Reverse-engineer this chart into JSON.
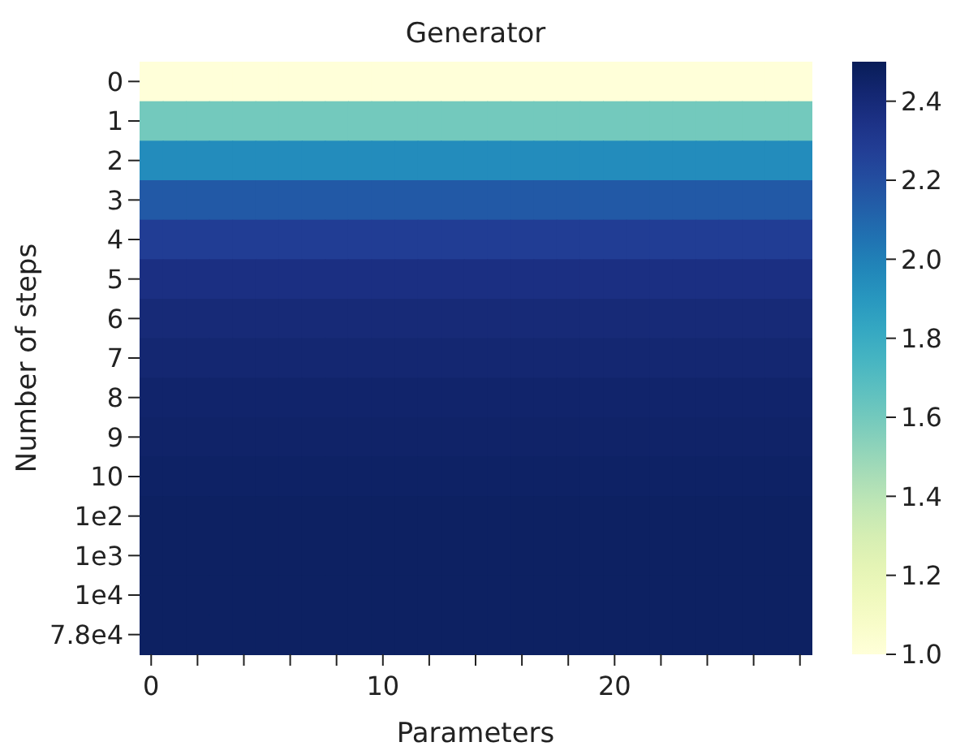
{
  "chart_data": {
    "type": "heatmap",
    "title": "Generator",
    "xlabel": "Parameters",
    "ylabel": "Number of steps",
    "categories": [
      "0",
      null,
      null,
      null,
      null,
      null,
      null,
      null,
      null,
      null,
      "10",
      null,
      null,
      null,
      null,
      null,
      null,
      null,
      null,
      null,
      "20",
      null,
      null,
      null,
      null,
      null,
      null,
      null,
      null
    ],
    "y_categories": [
      "0",
      "1",
      "2",
      "3",
      "4",
      "5",
      "6",
      "7",
      "8",
      "9",
      "10",
      "1e2",
      "1e3",
      "1e4",
      "7.8e4"
    ],
    "cells": [
      [
        1.0,
        1.0,
        1.0,
        1.0,
        1.0,
        1.0,
        1.0,
        1.0,
        1.0,
        1.0,
        1.0,
        1.0,
        1.0,
        1.0,
        1.0,
        1.0,
        1.0,
        1.0,
        1.0,
        1.0,
        1.0,
        1.0,
        1.0,
        1.0,
        1.0,
        1.0,
        1.0,
        1.0,
        1.0
      ],
      [
        1.6,
        1.6,
        1.6,
        1.6,
        1.6,
        1.6,
        1.6,
        1.6,
        1.6,
        1.6,
        1.6,
        1.6,
        1.6,
        1.6,
        1.6,
        1.6,
        1.6,
        1.6,
        1.6,
        1.6,
        1.6,
        1.6,
        1.6,
        1.6,
        1.6,
        1.6,
        1.6,
        1.6,
        1.6
      ],
      [
        1.95,
        1.95,
        1.95,
        1.95,
        1.95,
        1.95,
        1.95,
        1.95,
        1.95,
        1.95,
        1.95,
        1.95,
        1.95,
        1.95,
        1.95,
        1.95,
        1.95,
        1.95,
        1.95,
        1.95,
        1.95,
        1.95,
        1.95,
        1.95,
        1.95,
        1.95,
        1.95,
        1.95,
        1.95
      ],
      [
        2.15,
        2.15,
        2.15,
        2.15,
        2.15,
        2.15,
        2.15,
        2.15,
        2.15,
        2.15,
        2.15,
        2.15,
        2.15,
        2.15,
        2.15,
        2.15,
        2.15,
        2.15,
        2.15,
        2.15,
        2.15,
        2.15,
        2.15,
        2.15,
        2.15,
        2.15,
        2.15,
        2.15,
        2.15
      ],
      [
        2.28,
        2.28,
        2.28,
        2.28,
        2.28,
        2.28,
        2.28,
        2.28,
        2.28,
        2.28,
        2.28,
        2.28,
        2.28,
        2.28,
        2.28,
        2.28,
        2.28,
        2.28,
        2.28,
        2.28,
        2.28,
        2.28,
        2.28,
        2.28,
        2.28,
        2.28,
        2.28,
        2.28,
        2.28
      ],
      [
        2.36,
        2.36,
        2.36,
        2.36,
        2.36,
        2.36,
        2.36,
        2.36,
        2.36,
        2.36,
        2.36,
        2.36,
        2.36,
        2.36,
        2.36,
        2.36,
        2.36,
        2.36,
        2.36,
        2.36,
        2.36,
        2.36,
        2.36,
        2.36,
        2.36,
        2.36,
        2.36,
        2.36,
        2.36
      ],
      [
        2.4,
        2.4,
        2.4,
        2.4,
        2.4,
        2.4,
        2.4,
        2.4,
        2.4,
        2.4,
        2.4,
        2.4,
        2.4,
        2.4,
        2.4,
        2.4,
        2.4,
        2.4,
        2.4,
        2.4,
        2.4,
        2.4,
        2.4,
        2.4,
        2.4,
        2.4,
        2.4,
        2.4,
        2.4
      ],
      [
        2.42,
        2.42,
        2.42,
        2.42,
        2.42,
        2.42,
        2.42,
        2.42,
        2.42,
        2.42,
        2.42,
        2.42,
        2.42,
        2.42,
        2.42,
        2.42,
        2.42,
        2.42,
        2.42,
        2.42,
        2.42,
        2.42,
        2.42,
        2.42,
        2.42,
        2.42,
        2.42,
        2.42,
        2.42
      ],
      [
        2.44,
        2.44,
        2.44,
        2.44,
        2.44,
        2.44,
        2.44,
        2.44,
        2.44,
        2.44,
        2.44,
        2.44,
        2.44,
        2.44,
        2.44,
        2.44,
        2.44,
        2.44,
        2.44,
        2.44,
        2.44,
        2.44,
        2.44,
        2.44,
        2.44,
        2.44,
        2.44,
        2.44,
        2.44
      ],
      [
        2.45,
        2.45,
        2.45,
        2.45,
        2.45,
        2.45,
        2.45,
        2.45,
        2.45,
        2.45,
        2.45,
        2.45,
        2.45,
        2.45,
        2.45,
        2.45,
        2.45,
        2.45,
        2.45,
        2.45,
        2.45,
        2.45,
        2.45,
        2.45,
        2.45,
        2.45,
        2.45,
        2.45,
        2.45
      ],
      [
        2.46,
        2.46,
        2.46,
        2.46,
        2.46,
        2.46,
        2.46,
        2.46,
        2.46,
        2.46,
        2.46,
        2.46,
        2.46,
        2.46,
        2.46,
        2.46,
        2.46,
        2.46,
        2.46,
        2.46,
        2.46,
        2.46,
        2.46,
        2.46,
        2.46,
        2.46,
        2.46,
        2.46,
        2.46
      ],
      [
        2.47,
        2.47,
        2.47,
        2.47,
        2.47,
        2.47,
        2.47,
        2.47,
        2.47,
        2.47,
        2.47,
        2.47,
        2.47,
        2.47,
        2.47,
        2.47,
        2.47,
        2.47,
        2.47,
        2.47,
        2.47,
        2.47,
        2.47,
        2.47,
        2.47,
        2.47,
        2.47,
        2.47,
        2.47
      ],
      [
        2.47,
        2.47,
        2.47,
        2.47,
        2.47,
        2.47,
        2.47,
        2.47,
        2.47,
        2.47,
        2.47,
        2.47,
        2.47,
        2.47,
        2.47,
        2.47,
        2.47,
        2.47,
        2.47,
        2.47,
        2.47,
        2.47,
        2.47,
        2.47,
        2.47,
        2.47,
        2.47,
        2.47,
        2.47
      ],
      [
        2.47,
        2.47,
        2.47,
        2.47,
        2.47,
        2.47,
        2.47,
        2.47,
        2.47,
        2.47,
        2.47,
        2.47,
        2.47,
        2.47,
        2.47,
        2.47,
        2.47,
        2.47,
        2.47,
        2.47,
        2.47,
        2.47,
        2.47,
        2.47,
        2.47,
        2.47,
        2.47,
        2.47,
        2.47
      ],
      [
        2.47,
        2.47,
        2.47,
        2.47,
        2.47,
        2.47,
        2.47,
        2.47,
        2.47,
        2.47,
        2.47,
        2.47,
        2.47,
        2.47,
        2.47,
        2.47,
        2.47,
        2.47,
        2.47,
        2.47,
        2.47,
        2.47,
        2.47,
        2.47,
        2.47,
        2.47,
        2.47,
        2.47,
        2.47
      ]
    ],
    "clim": [
      1.0,
      2.5
    ],
    "cticks": [
      {
        "value": 1.0,
        "label": "1.0"
      },
      {
        "value": 1.2,
        "label": "1.2"
      },
      {
        "value": 1.4,
        "label": "1.4"
      },
      {
        "value": 1.6,
        "label": "1.6"
      },
      {
        "value": 1.8,
        "label": "1.8"
      },
      {
        "value": 2.0,
        "label": "2.0"
      },
      {
        "value": 2.2,
        "label": "2.2"
      },
      {
        "value": 2.4,
        "label": "2.4"
      }
    ]
  }
}
